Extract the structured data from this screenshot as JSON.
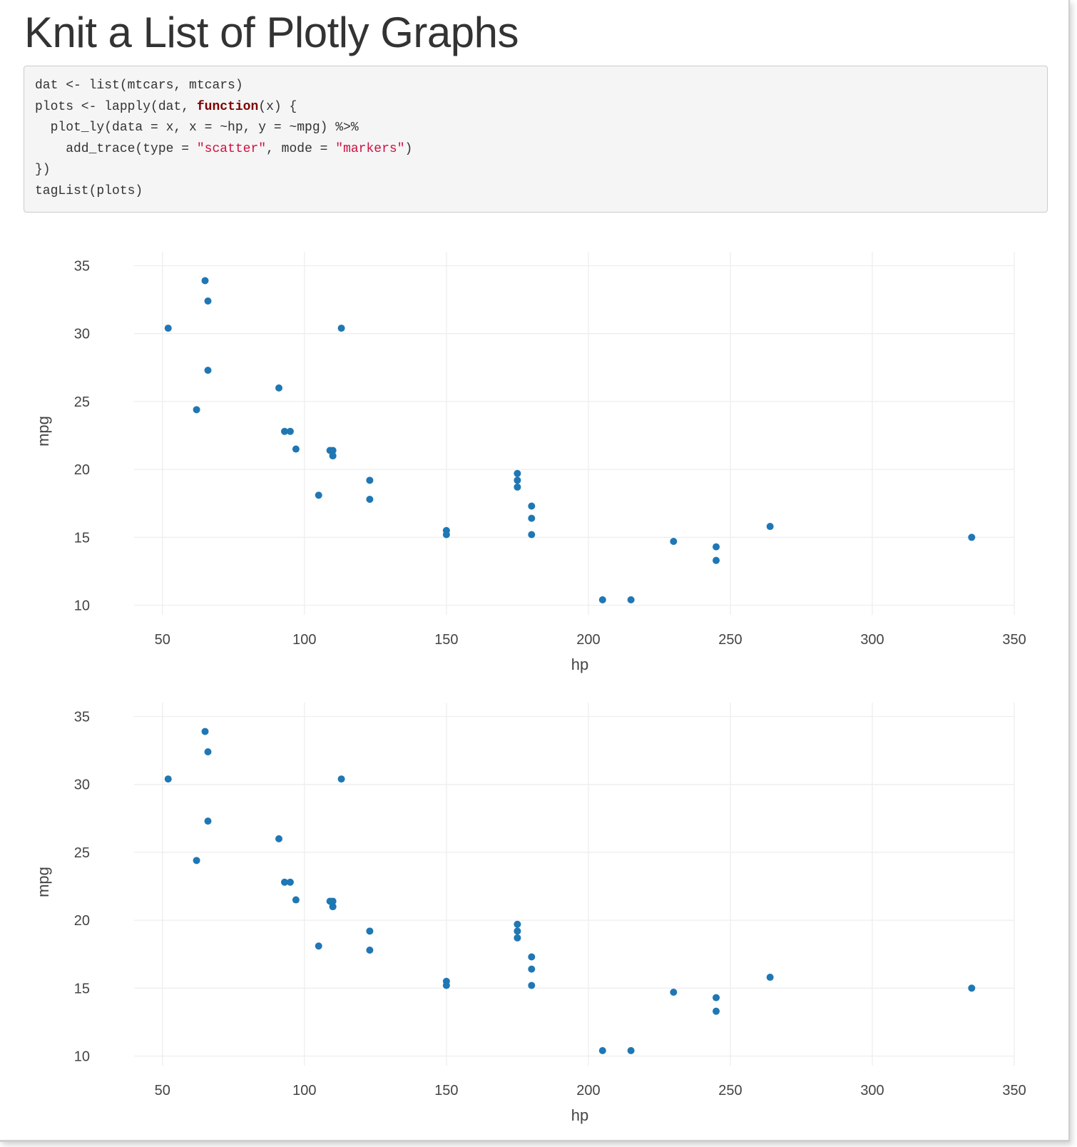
{
  "page": {
    "title": "Knit a List of Plotly Graphs"
  },
  "code": {
    "lines": [
      [
        {
          "t": "dat <- list(mtcars, mtcars)",
          "c": ""
        }
      ],
      [
        {
          "t": "plots <- lapply(dat, ",
          "c": ""
        },
        {
          "t": "function",
          "c": "kw"
        },
        {
          "t": "(x) {",
          "c": ""
        }
      ],
      [
        {
          "t": "  plot_ly(data = x, x = ~hp, y = ~mpg) %>%",
          "c": ""
        }
      ],
      [
        {
          "t": "    add_trace(type = ",
          "c": ""
        },
        {
          "t": "\"scatter\"",
          "c": "str"
        },
        {
          "t": ", mode = ",
          "c": ""
        },
        {
          "t": "\"markers\"",
          "c": "str"
        },
        {
          "t": ")",
          "c": ""
        }
      ],
      [
        {
          "t": "})",
          "c": ""
        }
      ],
      [
        {
          "t": "tagList(plots)",
          "c": ""
        }
      ]
    ]
  },
  "colors": {
    "marker": "#1f77b4",
    "grid": "#eeeeee",
    "tick_text": "#444444"
  },
  "chart_data": [
    {
      "type": "scatter",
      "title": "",
      "xlabel": "hp",
      "ylabel": "mpg",
      "xlim": [
        40,
        352
      ],
      "ylim": [
        9.5,
        35.5
      ],
      "xticks": [
        50,
        100,
        150,
        200,
        250,
        300,
        350
      ],
      "yticks": [
        10,
        15,
        20,
        25,
        30,
        35
      ],
      "grid": true,
      "legend": "none",
      "series": [
        {
          "x": [
            110,
            110,
            93,
            110,
            175,
            105,
            245,
            62,
            95,
            123,
            123,
            180,
            180,
            180,
            205,
            215,
            230,
            66,
            52,
            65,
            97,
            150,
            150,
            245,
            175,
            66,
            91,
            113,
            264,
            175,
            335,
            109
          ],
          "y": [
            21.0,
            21.0,
            22.8,
            21.4,
            18.7,
            18.1,
            14.3,
            24.4,
            22.8,
            19.2,
            17.8,
            16.4,
            17.3,
            15.2,
            10.4,
            10.4,
            14.7,
            32.4,
            30.4,
            33.9,
            21.5,
            15.5,
            15.2,
            13.3,
            19.2,
            27.3,
            26.0,
            30.4,
            15.8,
            19.7,
            15.0,
            21.4
          ]
        }
      ]
    },
    {
      "type": "scatter",
      "title": "",
      "xlabel": "hp",
      "ylabel": "mpg",
      "xlim": [
        40,
        352
      ],
      "ylim": [
        9.5,
        35.5
      ],
      "xticks": [
        50,
        100,
        150,
        200,
        250,
        300,
        350
      ],
      "yticks": [
        10,
        15,
        20,
        25,
        30,
        35
      ],
      "grid": true,
      "legend": "none",
      "series": [
        {
          "x": [
            110,
            110,
            93,
            110,
            175,
            105,
            245,
            62,
            95,
            123,
            123,
            180,
            180,
            180,
            205,
            215,
            230,
            66,
            52,
            65,
            97,
            150,
            150,
            245,
            175,
            66,
            91,
            113,
            264,
            175,
            335,
            109
          ],
          "y": [
            21.0,
            21.0,
            22.8,
            21.4,
            18.7,
            18.1,
            14.3,
            24.4,
            22.8,
            19.2,
            17.8,
            16.4,
            17.3,
            15.2,
            10.4,
            10.4,
            14.7,
            32.4,
            30.4,
            33.9,
            21.5,
            15.5,
            15.2,
            13.3,
            19.2,
            27.3,
            26.0,
            30.4,
            15.8,
            19.7,
            15.0,
            21.4
          ]
        }
      ]
    }
  ]
}
